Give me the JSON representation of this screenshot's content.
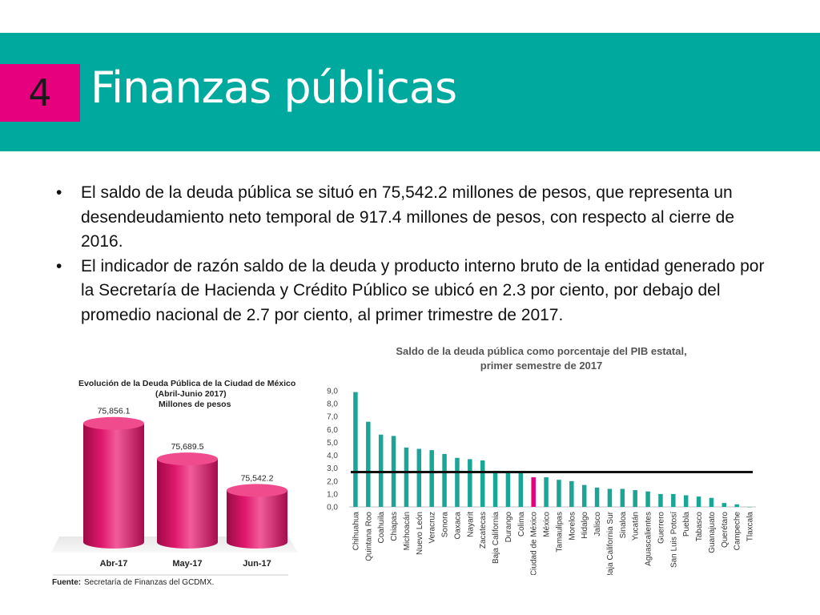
{
  "header": {
    "number": "4",
    "title": "Finanzas públicas",
    "band_color": "#00a99d",
    "box_color": "#e6007e"
  },
  "bullets": [
    "El saldo de la deuda pública se situó en 75,542.2 millones de pesos, que representa un desendeudamiento neto temporal de 917.4 millones de pesos, con respecto al cierre de 2016.",
    "El indicador de razón saldo de la deuda y producto interno bruto de la entidad generado por la Secretaría de Hacienda y Crédito Público se ubicó en 2.3 por ciento, por debajo del promedio nacional de 2.7 por ciento, al primer trimestre de 2017."
  ],
  "bullet_symbol": "•",
  "chart_data": [
    {
      "type": "bar",
      "title": "Evolución de la Deuda Pública de la Ciudad de México",
      "subtitle": "(Abril-Junio 2017)",
      "unit_label": "Millones de pesos",
      "categories": [
        "Abr-17",
        "May-17",
        "Jun-17"
      ],
      "values": [
        75856.1,
        75689.5,
        75542.2
      ],
      "value_labels": [
        "75,856.1",
        "75,689.5",
        "75,542.2"
      ],
      "source_label": "Fuente:",
      "source_text": "Secretaría de Finanzas del GCDMX.",
      "bar_color": "#e0186e"
    },
    {
      "type": "bar",
      "title": "Saldo de la deuda pública como porcentaje del PIB estatal, primer semestre de 2017",
      "title_lines": [
        "Saldo de la deuda pública como porcentaje del PIB estatal,",
        "primer semestre de 2017"
      ],
      "categories": [
        "Chihuahua",
        "Quintana Roo",
        "Coahuila",
        "Chiapas",
        "Michoacán",
        "Nuevo León",
        "Veracruz",
        "Sonora",
        "Oaxaca",
        "Nayarit",
        "Zacatecas",
        "Baja California",
        "Durango",
        "Colima",
        "Ciudad de México",
        "México",
        "Tamaulipas",
        "Morelos",
        "Hidalgo",
        "Jalisco",
        "Baja California Sur",
        "Sinaloa",
        "Yucatán",
        "Aguascalientes",
        "Guerrero",
        "San Luis Potosí",
        "Puebla",
        "Tabasco",
        "Guanajuato",
        "Querétaro",
        "Campeche",
        "Tlaxcala"
      ],
      "values": [
        8.9,
        6.6,
        5.6,
        5.5,
        4.6,
        4.5,
        4.4,
        4.1,
        3.8,
        3.7,
        3.6,
        2.8,
        2.7,
        2.7,
        2.3,
        2.3,
        2.1,
        2.0,
        1.7,
        1.5,
        1.4,
        1.4,
        1.3,
        1.2,
        1.0,
        1.0,
        0.9,
        0.8,
        0.7,
        0.3,
        0.2,
        0.0
      ],
      "highlight_category": "Ciudad de México",
      "average_line": 2.7,
      "ylim": [
        0,
        9
      ],
      "yticks": [
        "0,0",
        "1,0",
        "2,0",
        "3,0",
        "4,0",
        "5,0",
        "6,0",
        "7,0",
        "8,0",
        "9,0"
      ],
      "bar_color": "#1aa596",
      "highlight_color": "#e6007e",
      "line_color": "#111111",
      "grid": false
    }
  ]
}
